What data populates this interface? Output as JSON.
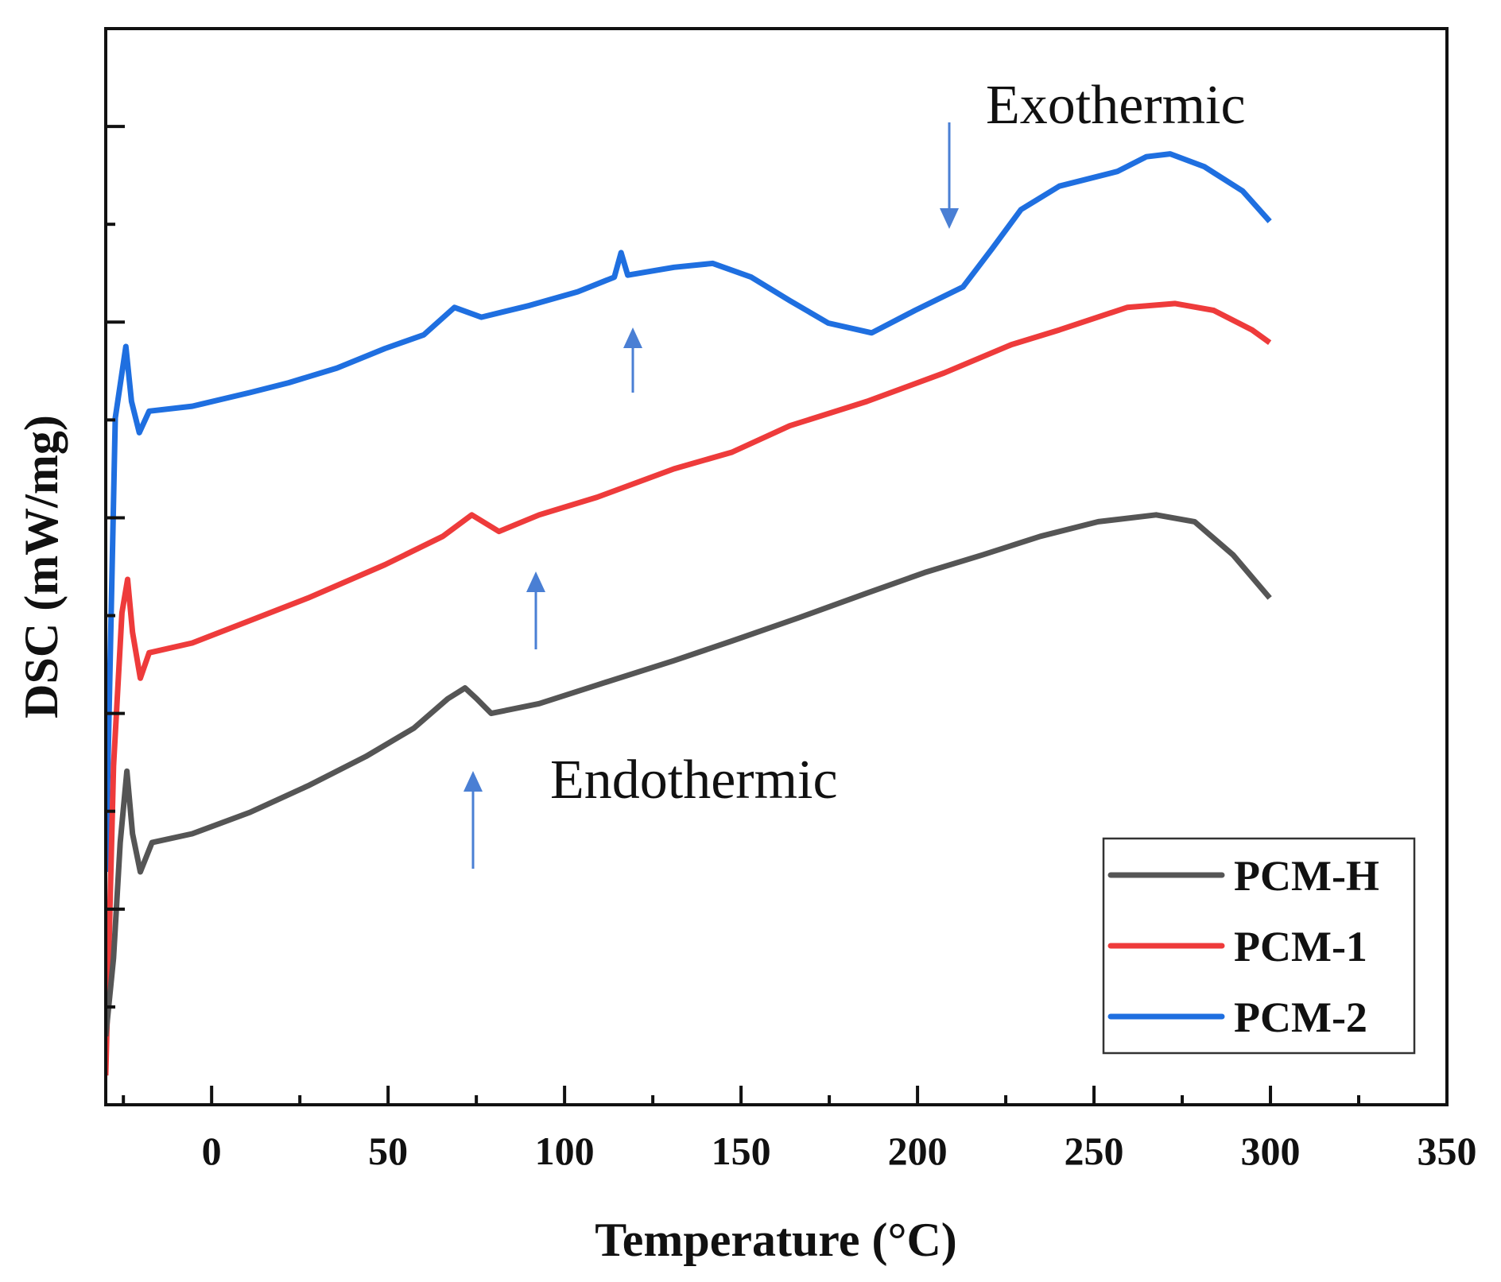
{
  "chart_data": {
    "type": "line",
    "title": "",
    "xlabel": "Temperature (°C)",
    "ylabel": "DSC (mW/mg)",
    "xlim": [
      -30,
      350
    ],
    "ylim": [
      0,
      11
    ],
    "x_ticks": [
      0,
      50,
      100,
      150,
      200,
      250,
      300,
      350
    ],
    "x_tick_labels": [
      "0",
      "50",
      "100",
      "150",
      "200",
      "250",
      "300",
      "350"
    ],
    "y_tick_labels_shown": false,
    "grid": false,
    "legend_position": "bottom-right",
    "annotations": [
      "Exothermic",
      "Endothermic"
    ],
    "series": [
      {
        "name": "PCM-H",
        "color": "#555555",
        "x": [
          -30,
          -27.8,
          -25.9,
          -24.0,
          -22.4,
          -20.2,
          -16.9,
          -5.5,
          10.9,
          27.3,
          43.7,
          57.3,
          66.9,
          71.8,
          75.1,
          79.2,
          92.8,
          109.2,
          131.0,
          147.4,
          166.5,
          185.7,
          202.0,
          218.4,
          234.8,
          251.2,
          267.6,
          278.5,
          289.4,
          299.8
        ],
        "y": [
          0.7,
          1.5,
          2.68,
          3.41,
          2.77,
          2.38,
          2.68,
          2.77,
          2.99,
          3.26,
          3.56,
          3.85,
          4.15,
          4.26,
          4.15,
          4.0,
          4.1,
          4.29,
          4.54,
          4.74,
          4.98,
          5.23,
          5.44,
          5.62,
          5.81,
          5.96,
          6.03,
          5.96,
          5.62,
          5.18
        ]
      },
      {
        "name": "PCM-1",
        "color": "#ee3b3b",
        "x": [
          -30,
          -27.8,
          -25.4,
          -23.8,
          -22.4,
          -20.2,
          -17.7,
          -5.5,
          10.9,
          27.3,
          49.1,
          65.5,
          73.7,
          81.4,
          92.8,
          109.2,
          131.0,
          147.4,
          163.8,
          185.7,
          207.5,
          226.6,
          240.2,
          259.4,
          273.0,
          283.9,
          294.8,
          299.8
        ],
        "y": [
          0.3,
          3.46,
          5.03,
          5.37,
          4.83,
          4.36,
          4.62,
          4.72,
          4.95,
          5.18,
          5.52,
          5.81,
          6.03,
          5.86,
          6.03,
          6.21,
          6.5,
          6.67,
          6.94,
          7.19,
          7.48,
          7.77,
          7.92,
          8.15,
          8.19,
          8.12,
          7.92,
          7.79
        ]
      },
      {
        "name": "PCM-2",
        "color": "#1f6fe0",
        "x": [
          -30,
          -27.3,
          -24.3,
          -22.7,
          -20.5,
          -17.7,
          -5.5,
          10.9,
          21.8,
          35.5,
          49.1,
          60.1,
          68.8,
          76.4,
          90.1,
          103.7,
          114.1,
          116.0,
          117.9,
          131.0,
          142.0,
          152.9,
          163.8,
          174.7,
          187.0,
          199.3,
          212.9,
          221.1,
          229.3,
          240.2,
          256.6,
          264.8,
          271.6,
          281.2,
          292.1,
          299.8
        ],
        "y": [
          2.38,
          7.02,
          7.75,
          7.19,
          6.87,
          7.09,
          7.14,
          7.28,
          7.38,
          7.53,
          7.73,
          7.87,
          8.15,
          8.05,
          8.17,
          8.31,
          8.46,
          8.71,
          8.48,
          8.56,
          8.6,
          8.46,
          8.22,
          7.99,
          7.89,
          8.12,
          8.36,
          8.75,
          9.15,
          9.39,
          9.54,
          9.69,
          9.72,
          9.59,
          9.34,
          9.03
        ]
      }
    ]
  }
}
